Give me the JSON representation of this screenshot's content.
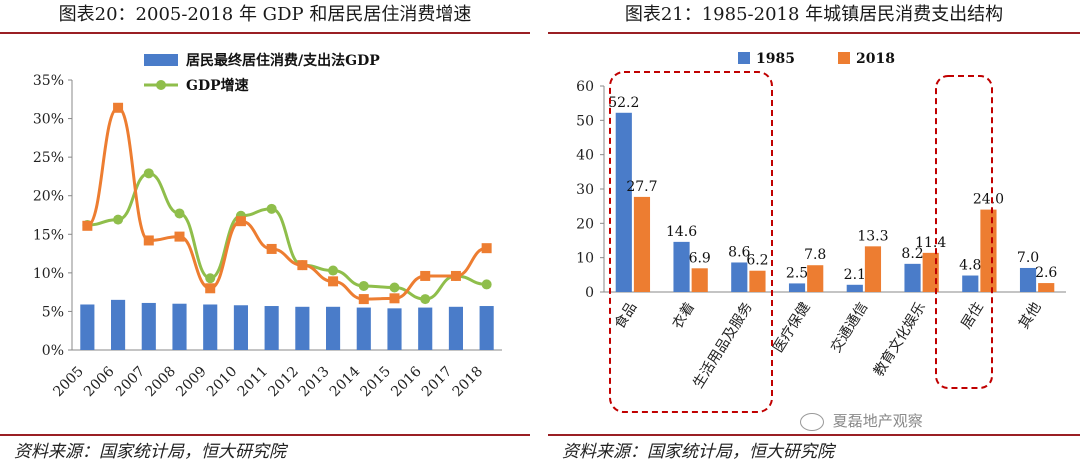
{
  "left": {
    "title": "图表20：2005-2018 年 GDP 和居民居住消费增速",
    "source": "资料来源：国家统计局，恒大研究院"
  },
  "right": {
    "title": "图表21：1985-2018 年城镇居民消费支出结构",
    "source": "资料来源：国家统计局，恒大研究院",
    "watermark": "夏磊地产观察"
  },
  "colors": {
    "blue": "#4a7cc9",
    "orange": "#ed7d31",
    "green": "#8fbe4b",
    "frame": "#9a1f24",
    "dashed": "#c00000"
  },
  "chart_data": [
    {
      "type": "bar+line",
      "title": "",
      "categories": [
        "2005",
        "2006",
        "2007",
        "2008",
        "2009",
        "2010",
        "2011",
        "2012",
        "2013",
        "2014",
        "2015",
        "2016",
        "2017",
        "2018"
      ],
      "yticks": [
        "0%",
        "5%",
        "10%",
        "15%",
        "20%",
        "25%",
        "30%",
        "35%"
      ],
      "ylim": [
        0,
        35
      ],
      "legend_placement": "top",
      "series": [
        {
          "name": "居民最终居住消费/支出法GDP",
          "kind": "bar",
          "color": "#4a7cc9",
          "values": [
            5.9,
            6.5,
            6.1,
            6.0,
            5.9,
            5.8,
            5.7,
            5.6,
            5.6,
            5.5,
            5.4,
            5.5,
            5.6,
            5.7
          ]
        },
        {
          "name": "GDP增速",
          "kind": "line",
          "color": "#8fbe4b",
          "values": [
            16.2,
            16.9,
            22.9,
            17.7,
            9.3,
            17.4,
            18.3,
            11.0,
            10.3,
            8.3,
            8.1,
            6.6,
            9.6,
            8.5
          ]
        },
        {
          "name": "",
          "kind": "line",
          "color": "#ed7d31",
          "values": [
            16.1,
            31.4,
            14.2,
            14.7,
            8.0,
            16.7,
            13.1,
            11.0,
            8.9,
            6.6,
            6.7,
            9.6,
            9.6,
            13.2
          ]
        }
      ]
    },
    {
      "type": "bar",
      "title": "",
      "categories": [
        "食品",
        "衣着",
        "生活用品及服务",
        "医疗保健",
        "交通通信",
        "教育文化娱乐",
        "居住",
        "其他"
      ],
      "yticks": [
        "0",
        "10",
        "20",
        "30",
        "40",
        "50",
        "60"
      ],
      "ylim": [
        0,
        60
      ],
      "legend_placement": "top",
      "series": [
        {
          "name": "1985",
          "color": "#4a7cc9",
          "values": [
            52.2,
            14.6,
            8.6,
            2.5,
            2.1,
            8.2,
            4.8,
            7.0
          ],
          "labels": [
            "52.2",
            "14.6",
            "8.6",
            "2.5",
            "2.1",
            "8.2",
            "4.8",
            "7.0"
          ]
        },
        {
          "name": "2018",
          "color": "#ed7d31",
          "values": [
            27.7,
            6.9,
            6.2,
            7.8,
            13.3,
            11.4,
            24.0,
            2.6
          ],
          "labels": [
            "27.7",
            "6.9",
            "6.2",
            "7.8",
            "13.3",
            "11.4",
            "24.0",
            "2.6"
          ]
        }
      ]
    }
  ]
}
